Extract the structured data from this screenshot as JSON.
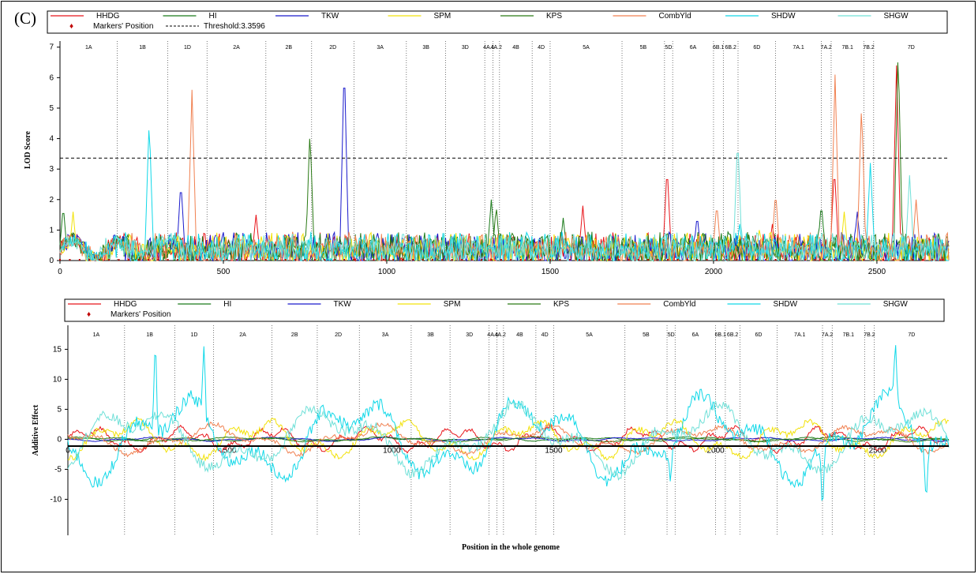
{
  "panel_label": "(C)",
  "colors": {
    "HHDG": "#e8141a",
    "HI": "#1a7a1a",
    "TKW": "#1a1acc",
    "SPM": "#f2e20a",
    "KPS": "#2a7a14",
    "CombYld": "#f08050",
    "SHDW": "#10d8e8",
    "SHGW": "#70e0d8",
    "marker": "#c00000",
    "threshold": "#000000"
  },
  "chart_data": [
    {
      "type": "line",
      "legend": {
        "entries": [
          "HHDG",
          "HI",
          "TKW",
          "SPM",
          "KPS",
          "CombYld",
          "SHDW",
          "SHGW"
        ],
        "markers_label": "Markers' Position",
        "threshold_label": "Threshold:3.3596"
      },
      "threshold": 3.3596,
      "ylabel": "LOD Score",
      "xlabel": "",
      "xlim": [
        0,
        2720
      ],
      "ylim": [
        0,
        7.2
      ],
      "xticks": [
        0,
        500,
        1000,
        1500,
        2000,
        2500
      ],
      "yticks": [
        0,
        1,
        2,
        3,
        4,
        5,
        6,
        7
      ],
      "chromosomes": [
        {
          "name": "1A",
          "start": 0,
          "end": 175
        },
        {
          "name": "1B",
          "start": 175,
          "end": 330
        },
        {
          "name": "1D",
          "start": 330,
          "end": 450
        },
        {
          "name": "2A",
          "start": 450,
          "end": 630
        },
        {
          "name": "2B",
          "start": 630,
          "end": 770
        },
        {
          "name": "2D",
          "start": 770,
          "end": 900
        },
        {
          "name": "3A",
          "start": 900,
          "end": 1060
        },
        {
          "name": "3B",
          "start": 1060,
          "end": 1180
        },
        {
          "name": "3D",
          "start": 1180,
          "end": 1300
        },
        {
          "name": "4A.1",
          "start": 1300,
          "end": 1325
        },
        {
          "name": "4A.2",
          "start": 1325,
          "end": 1345
        },
        {
          "name": "4B",
          "start": 1345,
          "end": 1445
        },
        {
          "name": "4D",
          "start": 1445,
          "end": 1500
        },
        {
          "name": "5A",
          "start": 1500,
          "end": 1720
        },
        {
          "name": "5B",
          "start": 1720,
          "end": 1850
        },
        {
          "name": "5D",
          "start": 1850,
          "end": 1875
        },
        {
          "name": "6A",
          "start": 1875,
          "end": 2000
        },
        {
          "name": "6B.1",
          "start": 2000,
          "end": 2030
        },
        {
          "name": "6B.2",
          "start": 2030,
          "end": 2075
        },
        {
          "name": "6D",
          "start": 2075,
          "end": 2190
        },
        {
          "name": "7A.1",
          "start": 2190,
          "end": 2330
        },
        {
          "name": "7A.2",
          "start": 2330,
          "end": 2360
        },
        {
          "name": "7B.1",
          "start": 2360,
          "end": 2460
        },
        {
          "name": "7B.2",
          "start": 2460,
          "end": 2490
        },
        {
          "name": "7D",
          "start": 2490,
          "end": 2720
        }
      ],
      "series": [
        {
          "name": "HHDG",
          "peaks": [
            [
              1858,
              3.1
            ],
            [
              2370,
              3.1
            ],
            [
              2560,
              6.4
            ],
            [
              600,
              1.5
            ],
            [
              1600,
              1.8
            ],
            [
              2180,
              1.2
            ]
          ]
        },
        {
          "name": "HI",
          "peaks": [
            [
              10,
              1.8
            ],
            [
              1320,
              2.0
            ],
            [
              1540,
              1.4
            ],
            [
              2330,
              1.9
            ],
            [
              2050,
              1.0
            ]
          ]
        },
        {
          "name": "TKW",
          "peaks": [
            [
              370,
              2.6
            ],
            [
              870,
              6.6
            ],
            [
              1950,
              1.5
            ],
            [
              2440,
              1.6
            ]
          ]
        },
        {
          "name": "SPM",
          "peaks": [
            [
              40,
              1.6
            ],
            [
              1700,
              0.9
            ],
            [
              2140,
              1.0
            ],
            [
              2400,
              1.6
            ]
          ]
        },
        {
          "name": "KPS",
          "peaks": [
            [
              765,
              4.3
            ],
            [
              1335,
              1.8
            ],
            [
              2565,
              7.0
            ]
          ]
        },
        {
          "name": "CombYld",
          "peaks": [
            [
              404,
              5.6
            ],
            [
              2372,
              6.1
            ],
            [
              2453,
              5.2
            ],
            [
              2620,
              2.0
            ],
            [
              2190,
              2.3
            ],
            [
              2010,
              1.9
            ]
          ]
        },
        {
          "name": "SHDW",
          "peaks": [
            [
              273,
              4.6
            ],
            [
              2480,
              3.2
            ],
            [
              2080,
              1.2
            ]
          ]
        },
        {
          "name": "SHGW",
          "peaks": [
            [
              2074,
              4.1
            ],
            [
              2600,
              2.8
            ],
            [
              1050,
              1.0
            ]
          ]
        }
      ]
    },
    {
      "type": "line",
      "legend": {
        "entries": [
          "HHDG",
          "HI",
          "TKW",
          "SPM",
          "KPS",
          "CombYld",
          "SHDW",
          "SHGW"
        ],
        "markers_label": "Markers' Position"
      },
      "ylabel": "Additive Effect",
      "xlabel": "Position in the whole genome",
      "xlim": [
        0,
        2720
      ],
      "ylim": [
        -16,
        19
      ],
      "xticks": [
        0,
        500,
        1000,
        1500,
        2000,
        2500
      ],
      "yticks": [
        -10,
        -5,
        0,
        5,
        10,
        15
      ],
      "series": [
        {
          "name": "HHDG",
          "amplitude": 2.5
        },
        {
          "name": "HI",
          "amplitude": 0.4
        },
        {
          "name": "TKW",
          "amplitude": 0.4
        },
        {
          "name": "SPM",
          "amplitude": 4
        },
        {
          "name": "KPS",
          "amplitude": 0.5
        },
        {
          "name": "CombYld",
          "amplitude": 3
        },
        {
          "name": "SHDW",
          "amplitude": 9,
          "spikes": [
            [
              270,
              18
            ],
            [
              420,
              15.5
            ],
            [
              1860,
              -7
            ],
            [
              2330,
              -13
            ],
            [
              2555,
              17
            ],
            [
              2650,
              -11
            ]
          ]
        },
        {
          "name": "SHGW",
          "amplitude": 7
        }
      ]
    }
  ]
}
